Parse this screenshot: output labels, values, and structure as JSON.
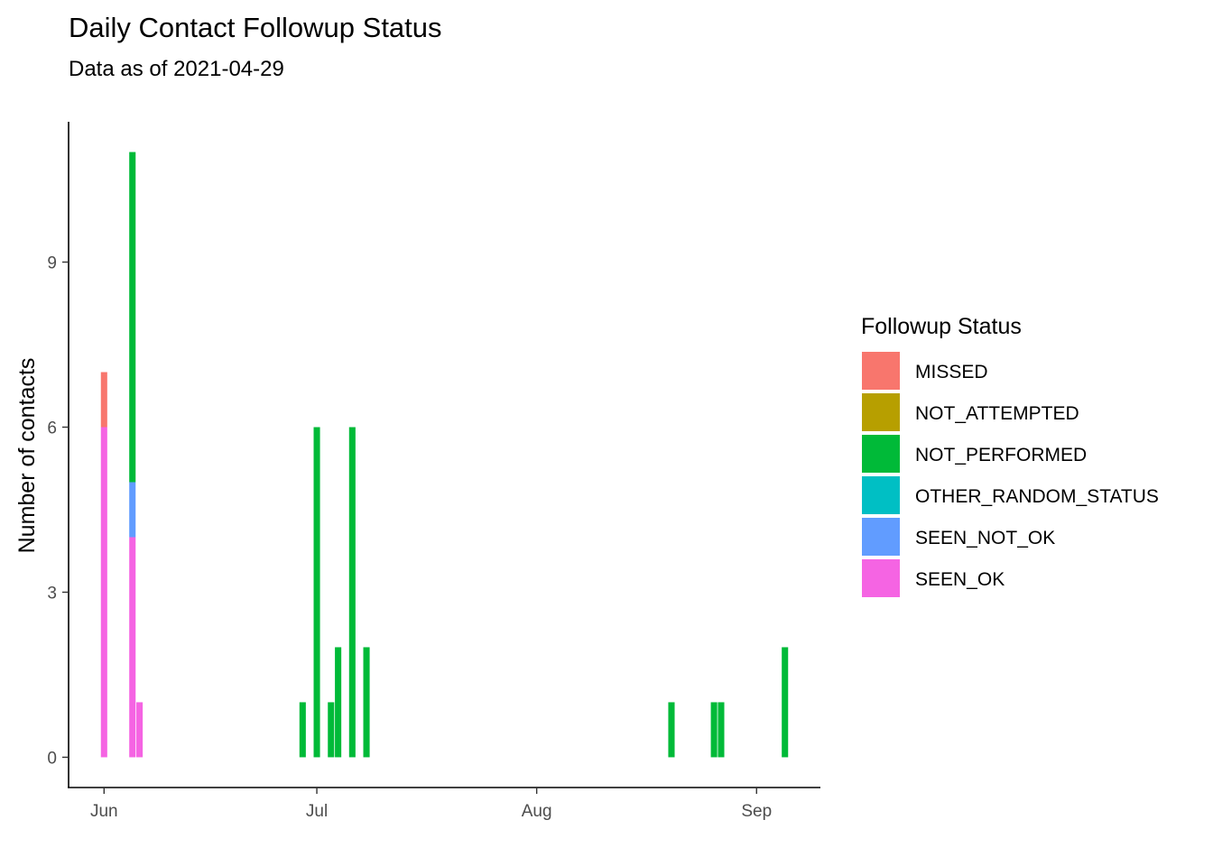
{
  "chart_data": {
    "type": "bar",
    "stacked": true,
    "title": "Daily Contact Followup Status",
    "subtitle": "Data as of 2021-04-29",
    "xlabel": "",
    "ylabel": "Number of contacts",
    "x_ticks": [
      {
        "date": "2020-06-01",
        "label": "Jun"
      },
      {
        "date": "2020-07-01",
        "label": "Jul"
      },
      {
        "date": "2020-08-01",
        "label": "Aug"
      },
      {
        "date": "2020-09-01",
        "label": "Sep"
      }
    ],
    "y_ticks": [
      0,
      3,
      6,
      9
    ],
    "xlim": [
      "2020-05-27",
      "2020-09-10"
    ],
    "ylim": [
      -0.55,
      11.55
    ],
    "grid": false,
    "legend": {
      "title": "Followup Status",
      "placement": "right",
      "entries": [
        "MISSED",
        "NOT_ATTEMPTED",
        "NOT_PERFORMED",
        "OTHER_RANDOM_STATUS",
        "SEEN_NOT_OK",
        "SEEN_OK"
      ]
    },
    "colors": {
      "MISSED": "#F8766D",
      "NOT_ATTEMPTED": "#B79F00",
      "NOT_PERFORMED": "#00BA38",
      "OTHER_RANDOM_STATUS": "#00BFC4",
      "SEEN_NOT_OK": "#619CFF",
      "SEEN_OK": "#F564E3"
    },
    "stack_order": [
      "SEEN_OK",
      "SEEN_NOT_OK",
      "OTHER_RANDOM_STATUS",
      "NOT_PERFORMED",
      "NOT_ATTEMPTED",
      "MISSED"
    ],
    "bars": [
      {
        "date": "2020-06-01",
        "values": {
          "SEEN_OK": 6,
          "MISSED": 1
        }
      },
      {
        "date": "2020-06-05",
        "values": {
          "SEEN_OK": 4,
          "SEEN_NOT_OK": 1,
          "NOT_PERFORMED": 6
        }
      },
      {
        "date": "2020-06-06",
        "values": {
          "SEEN_OK": 1
        }
      },
      {
        "date": "2020-06-29",
        "values": {
          "NOT_PERFORMED": 1
        }
      },
      {
        "date": "2020-07-01",
        "values": {
          "NOT_PERFORMED": 6
        }
      },
      {
        "date": "2020-07-03",
        "values": {
          "NOT_PERFORMED": 1
        }
      },
      {
        "date": "2020-07-04",
        "values": {
          "NOT_PERFORMED": 2
        }
      },
      {
        "date": "2020-07-06",
        "values": {
          "NOT_PERFORMED": 6
        }
      },
      {
        "date": "2020-07-08",
        "values": {
          "NOT_PERFORMED": 2
        }
      },
      {
        "date": "2020-08-20",
        "values": {
          "NOT_PERFORMED": 1
        }
      },
      {
        "date": "2020-08-26",
        "values": {
          "NOT_PERFORMED": 1
        }
      },
      {
        "date": "2020-08-27",
        "values": {
          "NOT_PERFORMED": 1
        }
      },
      {
        "date": "2020-09-05",
        "values": {
          "NOT_PERFORMED": 2
        }
      }
    ]
  }
}
